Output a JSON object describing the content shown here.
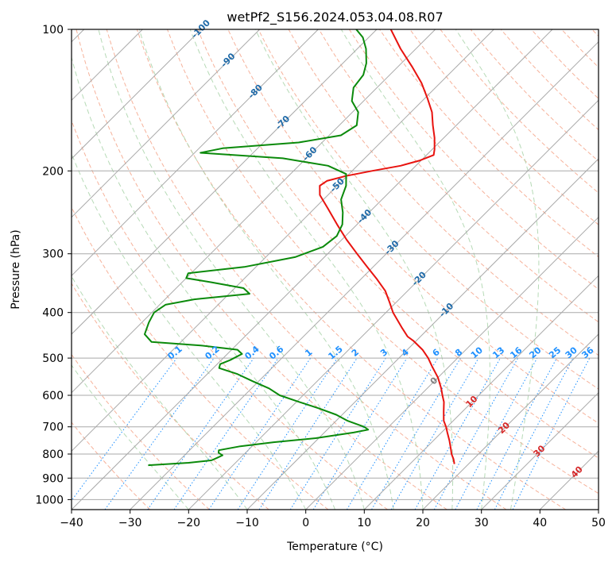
{
  "chart_data": {
    "type": "line",
    "subtype": "skew-T log-P diagram",
    "title": "wetPf2_S156.2024.053.04.08.R07",
    "xlabel": "Temperature (°C)",
    "ylabel": "Pressure (hPa)",
    "xlim": [
      -40,
      50
    ],
    "ylim": [
      1050,
      100
    ],
    "yscale": "log",
    "x_ticks": [
      -40,
      -30,
      -20,
      -10,
      0,
      10,
      20,
      30,
      40,
      50
    ],
    "y_ticks": [
      100,
      200,
      300,
      400,
      500,
      600,
      700,
      800,
      900,
      1000
    ],
    "grid": true,
    "skew_degrees": 45,
    "isotherm_labels": [
      "-100",
      "-90",
      "-80",
      "-70",
      "-60",
      "-50",
      "-40",
      "-30",
      "-20",
      "-10",
      "0",
      "10",
      "20",
      "30",
      "40"
    ],
    "mixing_ratio_labels": [
      "0.1",
      "0.2",
      "0.4",
      "0.6",
      "1",
      "1.5",
      "2",
      "3",
      "4",
      "6",
      "8",
      "10",
      "13",
      "16",
      "20",
      "25",
      "30",
      "36"
    ],
    "series": [
      {
        "name": "",
        "kind": "temperature",
        "color": "#e8130f",
        "points": [
          {
            "p": 840,
            "t": 17.6
          },
          {
            "p": 820,
            "t": 16.6
          },
          {
            "p": 800,
            "t": 15.4
          },
          {
            "p": 780,
            "t": 14.4
          },
          {
            "p": 750,
            "t": 12.8
          },
          {
            "p": 720,
            "t": 11.0
          },
          {
            "p": 700,
            "t": 9.8
          },
          {
            "p": 680,
            "t": 8.4
          },
          {
            "p": 650,
            "t": 6.8
          },
          {
            "p": 620,
            "t": 5.2
          },
          {
            "p": 600,
            "t": 3.8
          },
          {
            "p": 580,
            "t": 2.4
          },
          {
            "p": 550,
            "t": 0.0
          },
          {
            "p": 520,
            "t": -3.0
          },
          {
            "p": 500,
            "t": -5.0
          },
          {
            "p": 480,
            "t": -7.4
          },
          {
            "p": 460,
            "t": -10.4
          },
          {
            "p": 450,
            "t": -12.2
          },
          {
            "p": 430,
            "t": -14.8
          },
          {
            "p": 400,
            "t": -18.8
          },
          {
            "p": 380,
            "t": -21.2
          },
          {
            "p": 360,
            "t": -23.8
          },
          {
            "p": 340,
            "t": -27.2
          },
          {
            "p": 320,
            "t": -31.0
          },
          {
            "p": 300,
            "t": -35.0
          },
          {
            "p": 280,
            "t": -39.2
          },
          {
            "p": 260,
            "t": -43.4
          },
          {
            "p": 240,
            "t": -47.8
          },
          {
            "p": 225,
            "t": -51.4
          },
          {
            "p": 215,
            "t": -53.0
          },
          {
            "p": 210,
            "t": -52.6
          },
          {
            "p": 205,
            "t": -50.2
          },
          {
            "p": 200,
            "t": -46.6
          },
          {
            "p": 195,
            "t": -42.6
          },
          {
            "p": 190,
            "t": -40.2
          },
          {
            "p": 185,
            "t": -38.8
          },
          {
            "p": 180,
            "t": -39.6
          },
          {
            "p": 170,
            "t": -41.6
          },
          {
            "p": 160,
            "t": -44.0
          },
          {
            "p": 150,
            "t": -46.4
          },
          {
            "p": 140,
            "t": -49.6
          },
          {
            "p": 130,
            "t": -53.2
          },
          {
            "p": 120,
            "t": -57.6
          },
          {
            "p": 110,
            "t": -62.6
          },
          {
            "p": 100,
            "t": -67.6
          }
        ]
      },
      {
        "name": "",
        "kind": "dewpoint",
        "color": "#0b8a0b",
        "points": [
          {
            "p": 845,
            "t": -34.5
          },
          {
            "p": 835,
            "t": -28.0
          },
          {
            "p": 825,
            "t": -24.5
          },
          {
            "p": 815,
            "t": -24.0
          },
          {
            "p": 805,
            "t": -23.5
          },
          {
            "p": 795,
            "t": -24.6
          },
          {
            "p": 785,
            "t": -25.0
          },
          {
            "p": 770,
            "t": -22.0
          },
          {
            "p": 755,
            "t": -17.0
          },
          {
            "p": 740,
            "t": -10.5
          },
          {
            "p": 720,
            "t": -5.0
          },
          {
            "p": 710,
            "t": -3.0
          },
          {
            "p": 700,
            "t": -4.2
          },
          {
            "p": 680,
            "t": -8.0
          },
          {
            "p": 660,
            "t": -11.0
          },
          {
            "p": 640,
            "t": -15.0
          },
          {
            "p": 620,
            "t": -19.5
          },
          {
            "p": 600,
            "t": -24.0
          },
          {
            "p": 580,
            "t": -27.0
          },
          {
            "p": 560,
            "t": -31.0
          },
          {
            "p": 540,
            "t": -35.0
          },
          {
            "p": 525,
            "t": -39.0
          },
          {
            "p": 515,
            "t": -39.5
          },
          {
            "p": 505,
            "t": -38.5
          },
          {
            "p": 490,
            "t": -37.5
          },
          {
            "p": 480,
            "t": -39.0
          },
          {
            "p": 470,
            "t": -46.0
          },
          {
            "p": 462,
            "t": -55.0
          },
          {
            "p": 445,
            "t": -57.5
          },
          {
            "p": 420,
            "t": -58.8
          },
          {
            "p": 400,
            "t": -59.6
          },
          {
            "p": 385,
            "t": -59.0
          },
          {
            "p": 375,
            "t": -55.0
          },
          {
            "p": 365,
            "t": -46.5
          },
          {
            "p": 355,
            "t": -48.5
          },
          {
            "p": 345,
            "t": -55.0
          },
          {
            "p": 338,
            "t": -60.0
          },
          {
            "p": 330,
            "t": -60.5
          },
          {
            "p": 320,
            "t": -52.0
          },
          {
            "p": 305,
            "t": -45.0
          },
          {
            "p": 290,
            "t": -42.0
          },
          {
            "p": 275,
            "t": -41.5
          },
          {
            "p": 260,
            "t": -42.5
          },
          {
            "p": 245,
            "t": -44.5
          },
          {
            "p": 230,
            "t": -47.0
          },
          {
            "p": 215,
            "t": -48.5
          },
          {
            "p": 203,
            "t": -50.5
          },
          {
            "p": 195,
            "t": -55.0
          },
          {
            "p": 188,
            "t": -64.0
          },
          {
            "p": 183,
            "t": -79.0
          },
          {
            "p": 179,
            "t": -76.0
          },
          {
            "p": 174,
            "t": -64.0
          },
          {
            "p": 168,
            "t": -58.0
          },
          {
            "p": 160,
            "t": -57.0
          },
          {
            "p": 150,
            "t": -59.0
          },
          {
            "p": 142,
            "t": -62.0
          },
          {
            "p": 133,
            "t": -64.0
          },
          {
            "p": 125,
            "t": -64.5
          },
          {
            "p": 118,
            "t": -66.0
          },
          {
            "p": 110,
            "t": -68.5
          },
          {
            "p": 104,
            "t": -71.0
          },
          {
            "p": 100,
            "t": -73.5
          }
        ]
      }
    ]
  },
  "colors": {
    "temperature": "#e8130f",
    "dewpoint": "#0b8a0b",
    "isotherm": "#a9a9a9",
    "isobar": "#a9a9a9",
    "dry_adiabat": "#f4a58a",
    "moist_adiabat": "#a9d3a9",
    "mixing_ratio": "#1e90ff",
    "isotherm_label_cold": "#1f6aa8",
    "isotherm_label_warm": "#d62728",
    "isotherm_label_zero": "#808080"
  }
}
